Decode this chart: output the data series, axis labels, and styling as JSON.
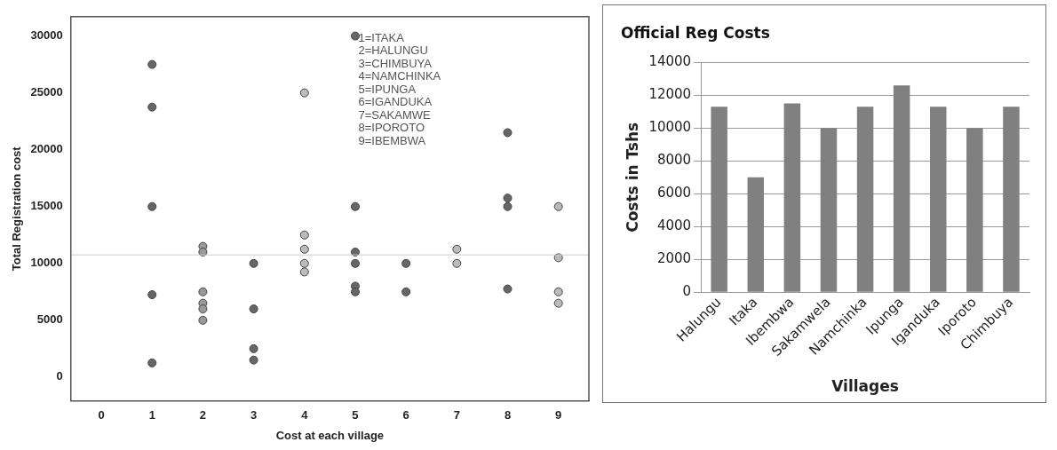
{
  "chart_data": [
    {
      "type": "scatter",
      "xlabel": "Cost at each village",
      "ylabel": "Total Registration cost",
      "xlim": [
        -0.6,
        9.6
      ],
      "xticks": [
        0,
        1,
        2,
        3,
        4,
        5,
        6,
        7,
        8,
        9
      ],
      "ylim": [
        -2100,
        31700
      ],
      "yticks": [
        0,
        5000,
        10000,
        15000,
        20000,
        25000,
        30000
      ],
      "grid": false,
      "marker": "circle",
      "legend": false,
      "series": [
        {
          "color": "#666666",
          "x": [
            1,
            1,
            1,
            1,
            1,
            3,
            3,
            3,
            3,
            5,
            5,
            5,
            5,
            5,
            5,
            6,
            6,
            8,
            8,
            8,
            8
          ],
          "values": [
            27500,
            23750,
            15000,
            7250,
            1250,
            10000,
            6000,
            2500,
            1500,
            30000,
            15000,
            11000,
            10000,
            8000,
            7500,
            10000,
            7500,
            21500,
            15750,
            15000,
            7750
          ]
        },
        {
          "color": "#999999",
          "x": [
            2,
            2,
            2,
            2,
            2,
            2
          ],
          "values": [
            11500,
            11000,
            7500,
            6500,
            6000,
            5000
          ]
        },
        {
          "color": "#bbbbbb",
          "x": [
            4,
            4,
            4,
            4,
            4,
            7,
            7,
            9,
            9,
            9,
            9
          ],
          "values": [
            25000,
            12500,
            11250,
            10000,
            9250,
            11250,
            10000,
            15000,
            10500,
            7500,
            6500
          ]
        }
      ],
      "ref_lines": [
        {
          "axis": "y",
          "value": 10750,
          "color": "#cccccc"
        }
      ],
      "annotations": [
        "1=ITAKA",
        "2=HALUNGU",
        "3=CHIMBUYA",
        "4=NAMCHINKA",
        "5=IPUNGA",
        "6=IGANDUKA",
        "7=SAKAMWE",
        "8=IPOROTO",
        "9=IBEMBWA"
      ]
    },
    {
      "type": "bar",
      "title": "Official Reg Costs",
      "xlabel": "Villages",
      "ylabel": "Costs in Tshs",
      "categories": [
        "Halungu",
        "Itaka",
        "Ibembwa",
        "Sakamwela",
        "Namchinka",
        "Ipunga",
        "Iganduka",
        "Iporoto",
        "Chimbuya"
      ],
      "values": [
        11300,
        7000,
        11500,
        10000,
        11300,
        12600,
        11300,
        10000,
        11300
      ],
      "color": "#808080",
      "ylim": [
        0,
        14000
      ],
      "yticks": [
        0,
        2000,
        4000,
        6000,
        8000,
        10000,
        12000,
        14000
      ],
      "grid": "y",
      "legend": false
    }
  ]
}
